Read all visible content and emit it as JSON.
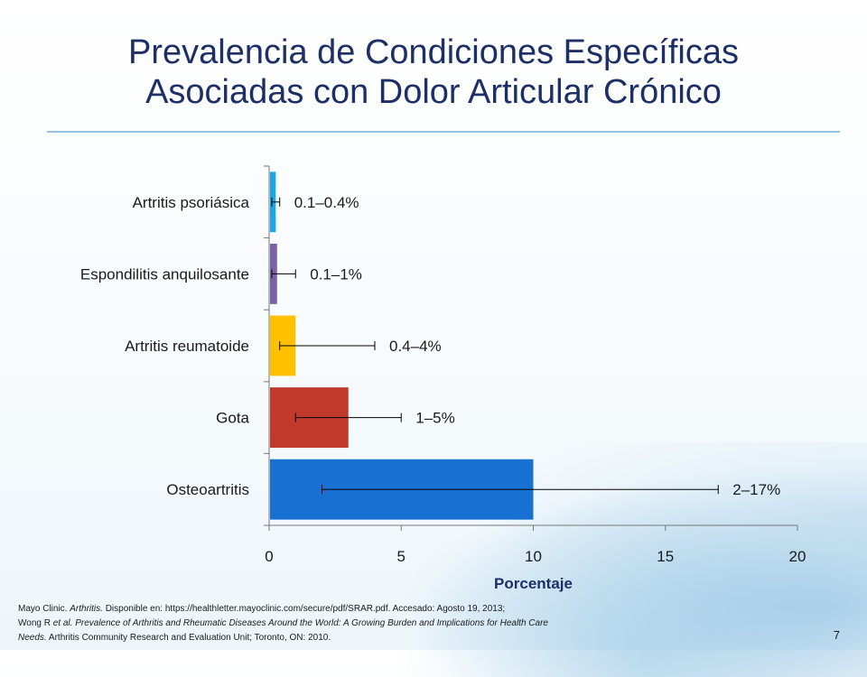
{
  "slide": {
    "title_line1": "Prevalencia de Condiciones Específicas",
    "title_line2": "Asociadas con Dolor Articular Crónico",
    "page_number": "7",
    "footnote": {
      "line1_a": "Mayo Clinic. ",
      "line1_b": "Arthritis.",
      "line1_c": " Disponible en: https://healthletter.mayoclinic.com/secure/pdf/SRAR.pdf.  Accesado: Agosto 19, 2013;",
      "line2_a": "Wong R ",
      "line2_b": "et al. Prevalence of Arthritis and Rheumatic Diseases Around the World: A Growing Burden and Implications for Health Care",
      "line3_a": "Needs.",
      "line3_b": " Arthritis Community Research and Evaluation Unit; Toronto, ON: 2010."
    }
  },
  "chart_data": {
    "type": "bar",
    "orientation": "horizontal",
    "title": "",
    "xlabel": "Porcentaje",
    "ylabel": "",
    "xlim": [
      0,
      20
    ],
    "xticks": [
      0,
      5,
      10,
      15,
      20
    ],
    "categories": [
      "Artritis psoriásica",
      "Espondilitis anquilosante",
      "Artritis reumatoide",
      "Gota",
      "Osteoartritis"
    ],
    "values": [
      0.25,
      0.3,
      1,
      3,
      10
    ],
    "error_low": [
      0.1,
      0.1,
      0.4,
      1,
      2
    ],
    "error_high": [
      0.4,
      1,
      4,
      5,
      17
    ],
    "labels": [
      "0.1–0.4%",
      "0.1–1%",
      "0.4–4%",
      "1–5%",
      "2–17%"
    ],
    "colors": [
      "#1aa7e8",
      "#7b62a8",
      "#ffc000",
      "#c0392b",
      "#1770d2"
    ],
    "grid": false,
    "legend": "none"
  }
}
